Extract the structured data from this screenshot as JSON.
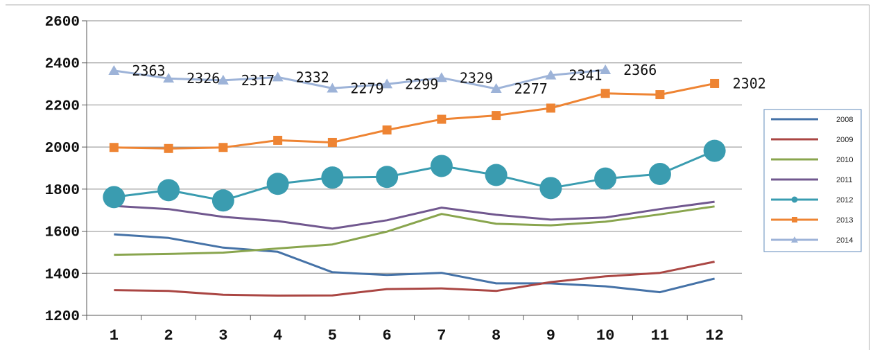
{
  "chart_data": {
    "type": "line",
    "title": "",
    "xlabel": "",
    "ylabel": "",
    "categories": [
      "1",
      "2",
      "3",
      "4",
      "5",
      "6",
      "7",
      "8",
      "9",
      "10",
      "11",
      "12"
    ],
    "ylim": [
      1200,
      2600
    ],
    "yticks": [
      "1200",
      "1400",
      "1600",
      "1800",
      "2000",
      "2200",
      "2400",
      "2600"
    ],
    "grid": "horizontal",
    "legend_position": "right",
    "series": [
      {
        "name": "2008",
        "color": "#4572A7",
        "marker": "none",
        "values": [
          1585,
          1568,
          1522,
          1502,
          1405,
          1392,
          1402,
          1352,
          1352,
          1338,
          1310,
          1375
        ]
      },
      {
        "name": "2009",
        "color": "#AA4643",
        "marker": "none",
        "values": [
          1320,
          1316,
          1298,
          1294,
          1295,
          1325,
          1328,
          1316,
          1358,
          1385,
          1402,
          1455
        ]
      },
      {
        "name": "2010",
        "color": "#89A54E",
        "marker": "none",
        "values": [
          1488,
          1492,
          1498,
          1518,
          1537,
          1598,
          1682,
          1635,
          1628,
          1645,
          1680,
          1718
        ]
      },
      {
        "name": "2011",
        "color": "#71588F",
        "marker": "none",
        "values": [
          1720,
          1705,
          1668,
          1648,
          1612,
          1652,
          1712,
          1678,
          1655,
          1665,
          1705,
          1740
        ]
      },
      {
        "name": "2012",
        "color": "#3A9CB0",
        "marker": "circle",
        "values": [
          1762,
          1795,
          1746,
          1825,
          1855,
          1858,
          1910,
          1867,
          1805,
          1850,
          1872,
          1982
        ]
      },
      {
        "name": "2013",
        "color": "#EE8433",
        "marker": "square",
        "values": [
          1998,
          1993,
          1998,
          2032,
          2022,
          2081,
          2132,
          2150,
          2185,
          2255,
          2249,
          2302
        ]
      },
      {
        "name": "2014",
        "color": "#9DB3D8",
        "marker": "triangle",
        "values": [
          2363,
          2326,
          2317,
          2332,
          2279,
          2299,
          2329,
          2277,
          2341,
          2366,
          null,
          null
        ]
      }
    ],
    "data_labels": [
      "2363",
      "2326",
      "2317",
      "2332",
      "2279",
      "2299",
      "2329",
      "2277",
      "2341",
      "2366",
      "2302"
    ]
  }
}
